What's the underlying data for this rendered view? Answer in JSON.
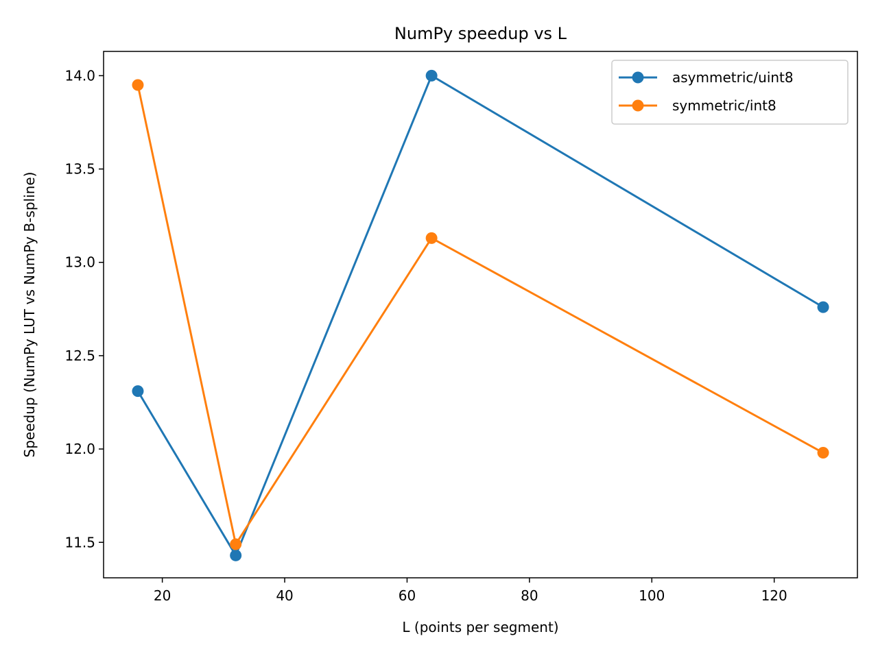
{
  "chart_data": {
    "type": "line",
    "title": "NumPy speedup vs L",
    "xlabel": "L (points per segment)",
    "ylabel": "Speedup (NumPy LUT vs NumPy B-spline)",
    "x": [
      16,
      32,
      64,
      128
    ],
    "xlim": [
      10.4,
      133.6
    ],
    "ylim": [
      11.31,
      14.13
    ],
    "xticks": [
      20,
      40,
      60,
      80,
      100,
      120
    ],
    "yticks": [
      11.5,
      12.0,
      12.5,
      13.0,
      13.5,
      14.0
    ],
    "ytick_labels": [
      "11.5",
      "12.0",
      "12.5",
      "13.0",
      "13.5",
      "14.0"
    ],
    "grid": false,
    "legend_position": "top-right",
    "series": [
      {
        "name": "asymmetric/uint8",
        "color": "#1f77b4",
        "marker": "circle",
        "values": [
          12.31,
          11.43,
          14.0,
          12.76
        ]
      },
      {
        "name": "symmetric/int8",
        "color": "#ff7f0e",
        "marker": "circle",
        "values": [
          13.95,
          11.49,
          13.13,
          11.98
        ]
      }
    ]
  }
}
